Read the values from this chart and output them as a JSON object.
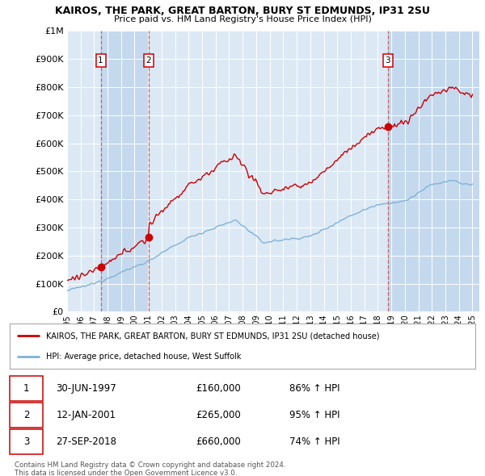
{
  "title": "KAIROS, THE PARK, GREAT BARTON, BURY ST EDMUNDS, IP31 2SU",
  "subtitle": "Price paid vs. HM Land Registry's House Price Index (HPI)",
  "bg_color": "#dce9f5",
  "shade_color": "#c5d9ee",
  "red_line_label": "KAIROS, THE PARK, GREAT BARTON, BURY ST EDMUNDS, IP31 2SU (detached house)",
  "blue_line_label": "HPI: Average price, detached house, West Suffolk",
  "transactions": [
    {
      "label": "1",
      "date": "30-JUN-1997",
      "price": 160000,
      "pct": "86%",
      "x": 1997.5
    },
    {
      "label": "2",
      "date": "12-JAN-2001",
      "price": 265000,
      "pct": "95%",
      "x": 2001.04
    },
    {
      "label": "3",
      "date": "27-SEP-2018",
      "price": 660000,
      "pct": "74%",
      "x": 2018.75
    }
  ],
  "footer1": "Contains HM Land Registry data © Crown copyright and database right 2024.",
  "footer2": "This data is licensed under the Open Government Licence v3.0.",
  "ylim": [
    0,
    1000000
  ],
  "xlim": [
    1995.0,
    2025.5
  ],
  "yticks": [
    0,
    100000,
    200000,
    300000,
    400000,
    500000,
    600000,
    700000,
    800000,
    900000,
    1000000
  ],
  "ytick_labels": [
    "£0",
    "£100K",
    "£200K",
    "£300K",
    "£400K",
    "£500K",
    "£600K",
    "£700K",
    "£800K",
    "£900K",
    "£1M"
  ]
}
